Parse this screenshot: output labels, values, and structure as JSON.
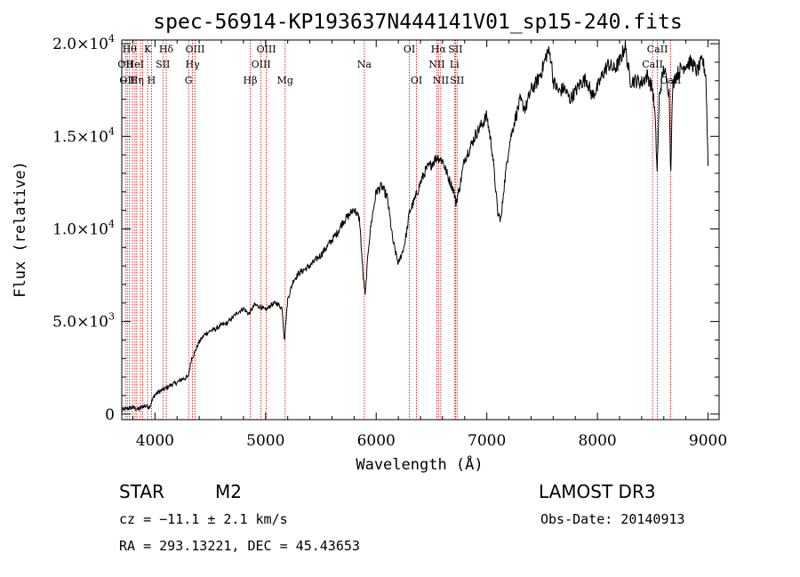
{
  "chart_data": {
    "type": "line",
    "title": "spec-56914-KP193637N444141V01_sp15-240.fits",
    "xlabel": "Wavelength (Å)",
    "ylabel": "Flux (relative)",
    "xlim": [
      3700,
      9100
    ],
    "ylim": [
      -300,
      20200
    ],
    "x_ticks": [
      {
        "value": 4000,
        "label": "4000"
      },
      {
        "value": 5000,
        "label": "5000"
      },
      {
        "value": 6000,
        "label": "6000"
      },
      {
        "value": 7000,
        "label": "7000"
      },
      {
        "value": 8000,
        "label": "8000"
      },
      {
        "value": 9000,
        "label": "9000"
      }
    ],
    "y_ticks": [
      {
        "value": 0,
        "mant": "0",
        "exp": ""
      },
      {
        "value": 5000,
        "mant": "5.0×10",
        "exp": "3"
      },
      {
        "value": 10000,
        "mant": "1.0×10",
        "exp": "4"
      },
      {
        "value": 15000,
        "mant": "1.5×10",
        "exp": "4"
      },
      {
        "value": 20000,
        "mant": "2.0×10",
        "exp": "4"
      }
    ],
    "spectrum": {
      "x": [
        3700,
        3750,
        3800,
        3850,
        3900,
        3950,
        4000,
        4050,
        4100,
        4150,
        4200,
        4250,
        4300,
        4330,
        4350,
        4400,
        4450,
        4500,
        4550,
        4600,
        4650,
        4700,
        4750,
        4800,
        4850,
        4900,
        4950,
        5000,
        5050,
        5100,
        5150,
        5170,
        5200,
        5250,
        5300,
        5350,
        5400,
        5450,
        5500,
        5550,
        5600,
        5650,
        5700,
        5750,
        5800,
        5850,
        5880,
        5900,
        5930,
        5950,
        6000,
        6050,
        6100,
        6150,
        6200,
        6250,
        6280,
        6300,
        6350,
        6400,
        6450,
        6500,
        6550,
        6600,
        6650,
        6700,
        6720,
        6750,
        6800,
        6850,
        6900,
        6950,
        7000,
        7050,
        7100,
        7130,
        7150,
        7200,
        7250,
        7300,
        7350,
        7400,
        7450,
        7500,
        7550,
        7580,
        7600,
        7650,
        7700,
        7750,
        7800,
        7850,
        7900,
        7950,
        8000,
        8050,
        8100,
        8150,
        8200,
        8250,
        8280,
        8300,
        8350,
        8400,
        8450,
        8500,
        8520,
        8540,
        8560,
        8600,
        8650,
        8662,
        8680,
        8700,
        8750,
        8800,
        8850,
        8900,
        8950,
        8980,
        9000
      ],
      "y": [
        200,
        300,
        350,
        250,
        450,
        400,
        1050,
        1250,
        1400,
        1600,
        1700,
        1900,
        2000,
        3000,
        3200,
        3900,
        4300,
        4500,
        4600,
        4800,
        4900,
        5200,
        5500,
        5700,
        5400,
        5900,
        5800,
        5600,
        5900,
        6000,
        5700,
        4000,
        6200,
        7200,
        7600,
        7800,
        8000,
        8300,
        8600,
        9000,
        9400,
        9800,
        10400,
        10700,
        11100,
        10500,
        7600,
        6400,
        9000,
        10100,
        12000,
        12300,
        11700,
        9400,
        8100,
        9000,
        10000,
        10900,
        11600,
        12500,
        13200,
        13500,
        13900,
        13700,
        12800,
        12100,
        11400,
        12100,
        13800,
        14400,
        15100,
        15600,
        16100,
        14200,
        10800,
        10500,
        12000,
        14500,
        15800,
        16900,
        16500,
        17500,
        17900,
        18600,
        19600,
        19300,
        18000,
        17400,
        17600,
        17000,
        17400,
        17900,
        18100,
        17200,
        17600,
        18400,
        18900,
        18600,
        19000,
        19900,
        18600,
        18000,
        18000,
        17900,
        18300,
        17500,
        16200,
        13100,
        17200,
        18700,
        17300,
        12900,
        17600,
        18200,
        18600,
        18900,
        19000,
        18500,
        19100,
        18300,
        13500
      ]
    },
    "lines": [
      {
        "w": 3734,
        "label": "OII",
        "row": 1
      },
      {
        "w": 3750,
        "label": "OII",
        "row": 2
      },
      {
        "w": 3770,
        "label": "Hθ",
        "row": 0
      },
      {
        "w": 3797,
        "label": "",
        "row": 0
      },
      {
        "w": 3820,
        "label": "HeI",
        "row": 1
      },
      {
        "w": 3835,
        "label": "Hη",
        "row": 2
      },
      {
        "w": 3869,
        "label": "",
        "row": 0
      },
      {
        "w": 3889,
        "label": "",
        "row": 0
      },
      {
        "w": 3934,
        "label": "K",
        "row": 0
      },
      {
        "w": 3968,
        "label": "H",
        "row": 2
      },
      {
        "w": 4072,
        "label": "SII",
        "row": 1
      },
      {
        "w": 4102,
        "label": "Hδ",
        "row": 0
      },
      {
        "w": 4304,
        "label": "G",
        "row": 2
      },
      {
        "w": 4340,
        "label": "Hγ",
        "row": 1
      },
      {
        "w": 4363,
        "label": "OIII",
        "row": 0
      },
      {
        "w": 4861,
        "label": "Hβ",
        "row": 2
      },
      {
        "w": 4959,
        "label": "OIII",
        "row": 1
      },
      {
        "w": 5007,
        "label": "OIII",
        "row": 0
      },
      {
        "w": 5177,
        "label": "Mg",
        "row": 2
      },
      {
        "w": 5893,
        "label": "Na",
        "row": 1
      },
      {
        "w": 6300,
        "label": "OI",
        "row": 0
      },
      {
        "w": 6364,
        "label": "OI",
        "row": 2
      },
      {
        "w": 6548,
        "label": "NII",
        "row": 1
      },
      {
        "w": 6563,
        "label": "Hα",
        "row": 0
      },
      {
        "w": 6584,
        "label": "NII",
        "row": 2
      },
      {
        "w": 6708,
        "label": "Li",
        "row": 1
      },
      {
        "w": 6717,
        "label": "SII",
        "row": 0
      },
      {
        "w": 6731,
        "label": "SII",
        "row": 2
      },
      {
        "w": 8498,
        "label": "CaII",
        "row": 1
      },
      {
        "w": 8542,
        "label": "CaII",
        "row": 0
      },
      {
        "w": 8662,
        "label": "CaII",
        "row": 2
      }
    ],
    "line_color": "#cc0000",
    "spectrum_color": "#000000"
  },
  "info": {
    "object_class": "STAR",
    "subclass": "M2",
    "survey": "LAMOST DR3",
    "cz": "cz = −11.1 ± 2.1 km/s",
    "obs_date": "Obs-Date: 20140913",
    "coords": "RA = 293.13221, DEC =  45.43653"
  }
}
